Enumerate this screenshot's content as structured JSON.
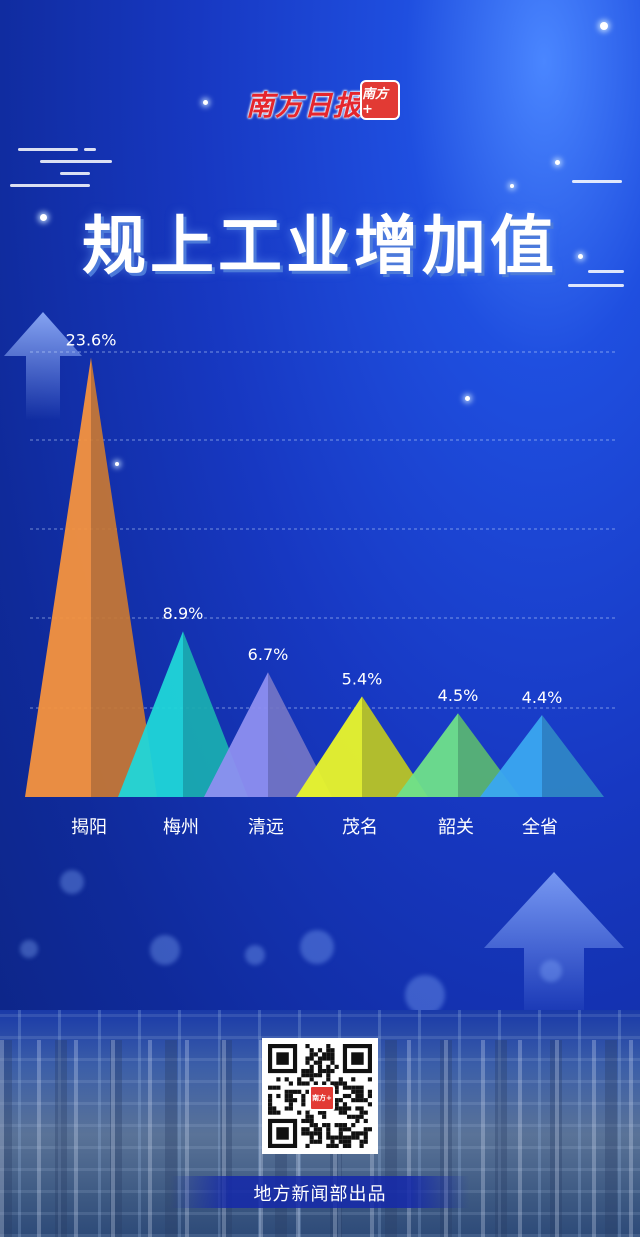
{
  "masthead": {
    "brand_name": "南方日报",
    "brand_badge": "南方+"
  },
  "title": "规上工业增加值",
  "chart_data": {
    "type": "bar",
    "categories": [
      "揭阳",
      "梅州",
      "清远",
      "茂名",
      "韶关",
      "全省"
    ],
    "values": [
      23.6,
      8.9,
      6.7,
      5.4,
      4.5,
      4.4
    ],
    "value_labels": [
      "23.6%",
      "8.9%",
      "6.7%",
      "5.4%",
      "4.5%",
      "4.4%"
    ],
    "unit": "%",
    "ylim": [
      0,
      24
    ],
    "grid": true,
    "colors": [
      "#f5923e",
      "#20d6d8",
      "#8d8ff0",
      "#e9f52a",
      "#6fe08a",
      "#3aa6f0"
    ]
  },
  "qr_logo": "南方+",
  "credit": "地方新闻部出品"
}
